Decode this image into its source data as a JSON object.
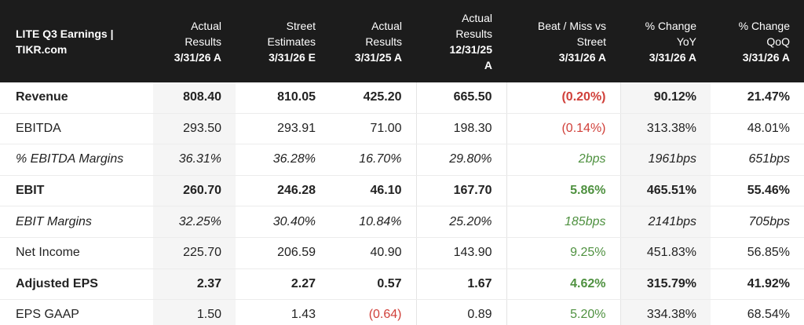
{
  "header": {
    "title": "LITE Q3 Earnings | TIKR.com",
    "columns": [
      {
        "label": "Actual Results",
        "period": "3/31/26 A"
      },
      {
        "label": "Street Estimates",
        "period": "3/31/26 E"
      },
      {
        "label": "Actual Results",
        "period": "3/31/25 A"
      },
      {
        "label": "Actual Results",
        "period": "12/31/25 A"
      },
      {
        "label": "Beat / Miss vs Street",
        "period": "3/31/26 A"
      },
      {
        "label": "% Change YoY",
        "period": "3/31/26 A"
      },
      {
        "label": "% Change QoQ",
        "period": "3/31/26 A"
      }
    ]
  },
  "table": {
    "rows": [
      [
        "Revenue",
        "808.40",
        "810.05",
        "425.20",
        "665.50",
        "(0.20%)",
        "90.12%",
        "21.47%"
      ],
      [
        "EBITDA",
        "293.50",
        "293.91",
        "71.00",
        "198.30",
        "(0.14%)",
        "313.38%",
        "48.01%"
      ],
      [
        "% EBITDA Margins",
        "36.31%",
        "36.28%",
        "16.70%",
        "29.80%",
        "2bps",
        "1961bps",
        "651bps"
      ],
      [
        "EBIT",
        "260.70",
        "246.28",
        "46.10",
        "167.70",
        "5.86%",
        "465.51%",
        "55.46%"
      ],
      [
        "EBIT Margins",
        "32.25%",
        "30.40%",
        "10.84%",
        "25.20%",
        "185bps",
        "2141bps",
        "705bps"
      ],
      [
        "Net Income",
        "225.70",
        "206.59",
        "40.90",
        "143.90",
        "9.25%",
        "451.83%",
        "56.85%"
      ],
      [
        "Adjusted EPS",
        "2.37",
        "2.27",
        "0.57",
        "1.67",
        "4.62%",
        "315.79%",
        "41.92%"
      ],
      [
        "EPS GAAP",
        "1.50",
        "1.43",
        "(0.64)",
        "0.89",
        "5.20%",
        "334.38%",
        "68.54%"
      ]
    ]
  }
}
